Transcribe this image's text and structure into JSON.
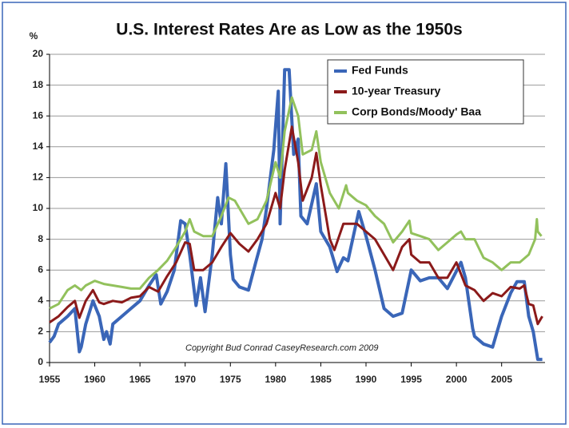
{
  "chart_data": {
    "type": "line",
    "title": "U.S. Interest Rates Are as Low as the 1950s",
    "y_label": "%",
    "annotation": "Copyright Bud Conrad  CaseyResearch.com 2009",
    "xlim": [
      1955,
      2009.8
    ],
    "xticks": [
      1955,
      1960,
      1965,
      1970,
      1975,
      1980,
      1985,
      1990,
      1995,
      2000,
      2005
    ],
    "ylim": [
      0,
      20
    ],
    "yticks": [
      0,
      2,
      4,
      6,
      8,
      10,
      12,
      14,
      16,
      18,
      20
    ],
    "grid": true,
    "legend": "upper right",
    "series": [
      {
        "name": "Fed Funds",
        "color": "#3a66b8",
        "width": 4,
        "x": [
          1955,
          1955.5,
          1956,
          1957,
          1957.8,
          1958.3,
          1958.5,
          1959,
          1959.8,
          1960.5,
          1961,
          1961.3,
          1961.7,
          1962,
          1963,
          1964,
          1965,
          1966,
          1966.8,
          1967.3,
          1968,
          1968.8,
          1969.5,
          1970,
          1970.5,
          1971.2,
          1971.7,
          1972.2,
          1973,
          1973.6,
          1974,
          1974.5,
          1975,
          1975.3,
          1976,
          1977,
          1977.8,
          1978.5,
          1979,
          1979.8,
          1980.3,
          1980.5,
          1981,
          1981.5,
          1982,
          1982.5,
          1982.8,
          1983.5,
          1984.5,
          1985,
          1986,
          1986.8,
          1987.5,
          1988,
          1989.2,
          1990,
          1991,
          1992,
          1993,
          1994,
          1995,
          1996,
          1997,
          1998,
          1999,
          2000.5,
          2001,
          2001.8,
          2002,
          2003,
          2004,
          2005,
          2006,
          2006.7,
          2007.5,
          2008,
          2008.5,
          2009,
          2009.5
        ],
        "values": [
          1.3,
          1.7,
          2.5,
          3.0,
          3.5,
          0.7,
          1.0,
          2.5,
          4.0,
          3.0,
          1.5,
          2.0,
          1.2,
          2.5,
          3.0,
          3.5,
          4.0,
          5.0,
          5.7,
          3.8,
          4.6,
          6.0,
          9.2,
          9.0,
          7.0,
          3.7,
          5.5,
          3.3,
          7.0,
          10.7,
          9.0,
          12.9,
          7.0,
          5.4,
          4.9,
          4.7,
          6.5,
          8.0,
          10.0,
          13.8,
          17.6,
          9.0,
          19.0,
          19.0,
          13.5,
          14.5,
          9.5,
          9.0,
          11.6,
          8.5,
          7.5,
          5.9,
          6.8,
          6.6,
          9.8,
          8.2,
          6.0,
          3.5,
          3.0,
          3.2,
          6.0,
          5.3,
          5.5,
          5.5,
          4.8,
          6.5,
          5.5,
          2.2,
          1.7,
          1.2,
          1.0,
          3.0,
          4.5,
          5.25,
          5.25,
          3.0,
          2.0,
          0.2,
          0.2
        ]
      },
      {
        "name": "10-year Treasury",
        "color": "#8b1a1a",
        "width": 3,
        "x": [
          1955,
          1956,
          1957,
          1957.8,
          1958.3,
          1959,
          1959.8,
          1960.5,
          1961,
          1962,
          1963,
          1964,
          1965,
          1966,
          1967,
          1968,
          1969,
          1970,
          1970.5,
          1971,
          1972,
          1973,
          1974,
          1975,
          1976,
          1977,
          1978,
          1979,
          1980,
          1980.5,
          1981,
          1981.8,
          1982.5,
          1983,
          1984,
          1984.5,
          1985,
          1986,
          1986.5,
          1987.5,
          1988,
          1989,
          1990,
          1991,
          1992,
          1993,
          1994,
          1994.8,
          1995,
          1996,
          1997,
          1998,
          1999,
          2000,
          2001,
          2002,
          2003,
          2004,
          2005,
          2006,
          2007,
          2007.5,
          2008,
          2008.5,
          2009,
          2009.5
        ],
        "values": [
          2.6,
          3.0,
          3.6,
          4.0,
          2.9,
          4.0,
          4.7,
          3.9,
          3.8,
          4.0,
          3.9,
          4.2,
          4.3,
          4.9,
          4.6,
          5.6,
          6.5,
          7.8,
          7.7,
          6.0,
          6.0,
          6.5,
          7.5,
          8.4,
          7.7,
          7.2,
          8.0,
          9.0,
          11.0,
          10.0,
          12.5,
          15.3,
          13.0,
          10.5,
          12.0,
          13.6,
          11.5,
          8.0,
          7.3,
          9.0,
          9.0,
          9.0,
          8.5,
          8.0,
          7.0,
          6.0,
          7.5,
          8.0,
          7.0,
          6.5,
          6.5,
          5.5,
          5.5,
          6.5,
          5.0,
          4.7,
          4.0,
          4.5,
          4.3,
          4.9,
          4.8,
          5.0,
          3.8,
          3.7,
          2.5,
          3.0
        ]
      },
      {
        "name": "Corp Bonds/Moody' Baa",
        "color": "#92c15c",
        "width": 3,
        "x": [
          1955,
          1956,
          1957,
          1957.8,
          1958.5,
          1959,
          1960,
          1961,
          1962,
          1963,
          1964,
          1965,
          1966,
          1967,
          1968,
          1969,
          1970,
          1970.5,
          1971,
          1972,
          1973,
          1974,
          1974.8,
          1975.5,
          1976,
          1977,
          1978,
          1979,
          1980,
          1980.5,
          1981,
          1981.8,
          1982.5,
          1983,
          1984,
          1984.5,
          1985,
          1986,
          1987,
          1987.8,
          1988,
          1989,
          1990,
          1991,
          1992,
          1993,
          1994,
          1994.8,
          1995,
          1996,
          1997,
          1998,
          1999,
          2000,
          2000.5,
          2001,
          2002,
          2003,
          2004,
          2005,
          2006,
          2007,
          2008,
          2008.7,
          2008.9,
          2009,
          2009.4
        ],
        "values": [
          3.5,
          3.8,
          4.7,
          5.0,
          4.7,
          5.0,
          5.3,
          5.1,
          5.0,
          4.9,
          4.8,
          4.8,
          5.5,
          6.0,
          6.6,
          7.5,
          8.5,
          9.3,
          8.5,
          8.2,
          8.2,
          9.5,
          10.7,
          10.5,
          10.0,
          9.0,
          9.3,
          10.5,
          13.0,
          12.0,
          15.0,
          17.2,
          16.0,
          13.5,
          13.8,
          15.0,
          13.0,
          11.0,
          10.0,
          11.5,
          11.0,
          10.5,
          10.2,
          9.5,
          9.0,
          7.8,
          8.5,
          9.2,
          8.4,
          8.2,
          8.0,
          7.3,
          7.8,
          8.3,
          8.5,
          8.0,
          8.0,
          6.8,
          6.5,
          6.0,
          6.5,
          6.5,
          7.0,
          8.0,
          9.3,
          8.5,
          8.2
        ]
      }
    ]
  }
}
